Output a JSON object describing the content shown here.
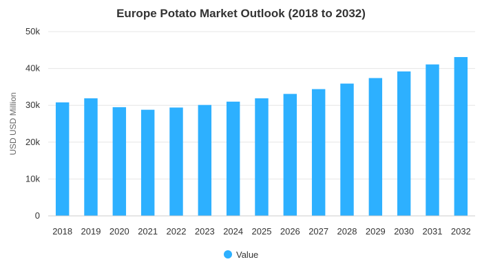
{
  "chart_data": {
    "type": "bar",
    "title": "Europe Potato Market Outlook (2018 to 2032)",
    "xlabel": "",
    "ylabel": "USD USD Million",
    "categories": [
      "2018",
      "2019",
      "2020",
      "2021",
      "2022",
      "2023",
      "2024",
      "2025",
      "2026",
      "2027",
      "2028",
      "2029",
      "2030",
      "2031",
      "2032"
    ],
    "series": [
      {
        "name": "Value",
        "color": "#2db0ff",
        "values": [
          30800,
          31900,
          29500,
          28800,
          29400,
          30100,
          31000,
          31900,
          33100,
          34400,
          35900,
          37400,
          39200,
          41100,
          43100
        ]
      }
    ],
    "ylim": [
      0,
      50000
    ],
    "yticks": [
      0,
      10000,
      20000,
      30000,
      40000,
      50000
    ],
    "ytick_labels": [
      "0",
      "10k",
      "20k",
      "30k",
      "40k",
      "50k"
    ],
    "grid": true,
    "legend": "bottom-center"
  }
}
